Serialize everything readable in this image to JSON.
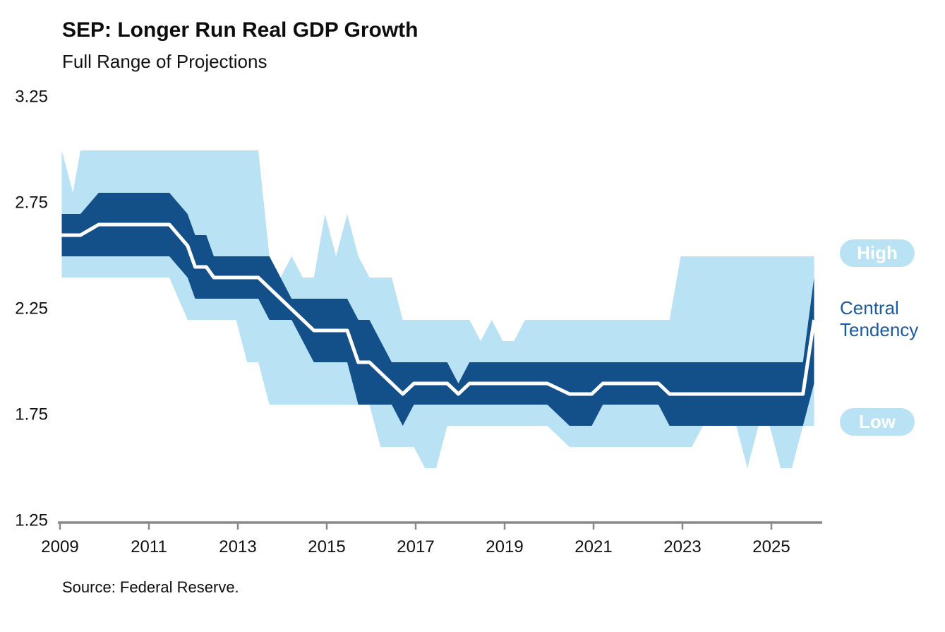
{
  "header": {
    "title": "SEP: Longer Run Real GDP Growth",
    "subtitle": "Full Range of Projections"
  },
  "source_note": "Source: Federal Reserve.",
  "annotations": {
    "high_label": "High",
    "low_label": "Low",
    "central_tendency_label": "Central Tendency"
  },
  "colors": {
    "full_range_blue": "#B9E2F5",
    "central_tendency_blue": "#134F88",
    "median_line_white": "#FFFFFF",
    "annotation_text_blue": "#1A5A9E",
    "axis_gray": "#8A8A8A",
    "text_black": "#0D0D0D"
  },
  "chart_data": {
    "type": "area",
    "title": "SEP: Longer Run Real GDP Growth",
    "subtitle": "Full Range of Projections",
    "xlabel": "",
    "ylabel": "",
    "x_range": [
      2009,
      2026.2
    ],
    "y_range": [
      1.25,
      3.25
    ],
    "grid": false,
    "legend_position": "right",
    "y_ticks": [
      {
        "label": "3.25",
        "value": 3.25
      },
      {
        "label": "2.75",
        "value": 2.75
      },
      {
        "label": "2.25",
        "value": 2.25
      },
      {
        "label": "1.75",
        "value": 1.75
      },
      {
        "label": "1.25",
        "value": 1.25
      }
    ],
    "x_ticks": [
      {
        "label": "2009",
        "value": 2009
      },
      {
        "label": "2011",
        "value": 2011
      },
      {
        "label": "2013",
        "value": 2013
      },
      {
        "label": "2015",
        "value": 2015
      },
      {
        "label": "2017",
        "value": 2017
      },
      {
        "label": "2019",
        "value": 2019
      },
      {
        "label": "2021",
        "value": 2021
      },
      {
        "label": "2023",
        "value": 2023
      },
      {
        "label": "2025",
        "value": 2025
      }
    ],
    "series_legend": [
      {
        "name": "High",
        "series": "range_high",
        "color": "#B9E2F5"
      },
      {
        "name": "Low",
        "series": "range_low",
        "color": "#B9E2F5"
      },
      {
        "name": "Central Tendency",
        "series": "ct_band",
        "color": "#134F88"
      },
      {
        "name": "midline",
        "series": "white_line_mid",
        "color": "#FFFFFF"
      }
    ],
    "columns": [
      "sep_date_decimal_year",
      "range_low",
      "range_high",
      "central_tendency_low",
      "central_tendency_high",
      "white_line_mid"
    ],
    "points": [
      [
        2009.04,
        2.4,
        3.0,
        2.5,
        2.7,
        2.6
      ],
      [
        2009.29,
        2.4,
        2.8,
        2.5,
        2.7,
        2.6
      ],
      [
        2009.46,
        2.4,
        3.0,
        2.5,
        2.7,
        2.6
      ],
      [
        2009.87,
        2.4,
        3.0,
        2.5,
        2.8,
        2.65
      ],
      [
        2010.04,
        2.4,
        3.0,
        2.5,
        2.8,
        2.65
      ],
      [
        2010.29,
        2.4,
        3.0,
        2.5,
        2.8,
        2.65
      ],
      [
        2010.46,
        2.4,
        3.0,
        2.5,
        2.8,
        2.65
      ],
      [
        2010.87,
        2.4,
        3.0,
        2.5,
        2.8,
        2.65
      ],
      [
        2011.04,
        2.4,
        3.0,
        2.5,
        2.8,
        2.65
      ],
      [
        2011.29,
        2.4,
        3.0,
        2.5,
        2.8,
        2.65
      ],
      [
        2011.46,
        2.4,
        3.0,
        2.5,
        2.8,
        2.65
      ],
      [
        2011.87,
        2.2,
        3.0,
        2.4,
        2.7,
        2.55
      ],
      [
        2012.04,
        2.2,
        3.0,
        2.3,
        2.6,
        2.45
      ],
      [
        2012.29,
        2.2,
        3.0,
        2.3,
        2.6,
        2.45
      ],
      [
        2012.46,
        2.2,
        3.0,
        2.3,
        2.5,
        2.4
      ],
      [
        2012.71,
        2.2,
        3.0,
        2.3,
        2.5,
        2.4
      ],
      [
        2012.96,
        2.2,
        3.0,
        2.3,
        2.5,
        2.4
      ],
      [
        2013.21,
        2.0,
        3.0,
        2.3,
        2.5,
        2.4
      ],
      [
        2013.46,
        2.0,
        3.0,
        2.3,
        2.5,
        2.4
      ],
      [
        2013.71,
        1.8,
        2.5,
        2.2,
        2.5,
        2.35
      ],
      [
        2013.96,
        1.8,
        2.4,
        2.2,
        2.4,
        2.3
      ],
      [
        2014.21,
        1.8,
        2.5,
        2.2,
        2.3,
        2.25
      ],
      [
        2014.46,
        1.8,
        2.4,
        2.1,
        2.3,
        2.2
      ],
      [
        2014.71,
        1.8,
        2.4,
        2.0,
        2.3,
        2.15
      ],
      [
        2014.96,
        1.8,
        2.7,
        2.0,
        2.3,
        2.15
      ],
      [
        2015.21,
        1.8,
        2.5,
        2.0,
        2.3,
        2.15
      ],
      [
        2015.46,
        1.8,
        2.7,
        2.0,
        2.3,
        2.15
      ],
      [
        2015.71,
        1.8,
        2.5,
        1.8,
        2.2,
        2.0
      ],
      [
        2015.96,
        1.8,
        2.4,
        1.8,
        2.2,
        2.0
      ],
      [
        2016.21,
        1.6,
        2.4,
        1.8,
        2.1,
        1.95
      ],
      [
        2016.46,
        1.6,
        2.4,
        1.8,
        2.0,
        1.9
      ],
      [
        2016.71,
        1.6,
        2.2,
        1.7,
        2.0,
        1.85
      ],
      [
        2016.96,
        1.6,
        2.2,
        1.8,
        2.0,
        1.9
      ],
      [
        2017.21,
        1.5,
        2.2,
        1.8,
        2.0,
        1.9
      ],
      [
        2017.46,
        1.5,
        2.2,
        1.8,
        2.0,
        1.9
      ],
      [
        2017.71,
        1.7,
        2.2,
        1.8,
        2.0,
        1.9
      ],
      [
        2017.96,
        1.7,
        2.2,
        1.8,
        1.9,
        1.85
      ],
      [
        2018.21,
        1.7,
        2.2,
        1.8,
        2.0,
        1.9
      ],
      [
        2018.46,
        1.7,
        2.1,
        1.8,
        2.0,
        1.9
      ],
      [
        2018.71,
        1.7,
        2.2,
        1.8,
        2.0,
        1.9
      ],
      [
        2018.96,
        1.7,
        2.1,
        1.8,
        2.0,
        1.9
      ],
      [
        2019.21,
        1.7,
        2.1,
        1.8,
        2.0,
        1.9
      ],
      [
        2019.46,
        1.7,
        2.2,
        1.8,
        2.0,
        1.9
      ],
      [
        2019.71,
        1.7,
        2.2,
        1.8,
        2.0,
        1.9
      ],
      [
        2019.96,
        1.7,
        2.2,
        1.8,
        2.0,
        1.9
      ],
      [
        2020.46,
        1.6,
        2.2,
        1.7,
        2.0,
        1.85
      ],
      [
        2020.71,
        1.6,
        2.2,
        1.7,
        2.0,
        1.85
      ],
      [
        2020.96,
        1.6,
        2.2,
        1.7,
        2.0,
        1.85
      ],
      [
        2021.21,
        1.6,
        2.2,
        1.8,
        2.0,
        1.9
      ],
      [
        2021.46,
        1.6,
        2.2,
        1.8,
        2.0,
        1.9
      ],
      [
        2021.71,
        1.6,
        2.2,
        1.8,
        2.0,
        1.9
      ],
      [
        2021.96,
        1.6,
        2.2,
        1.8,
        2.0,
        1.9
      ],
      [
        2022.21,
        1.6,
        2.2,
        1.8,
        2.0,
        1.9
      ],
      [
        2022.46,
        1.6,
        2.2,
        1.8,
        2.0,
        1.9
      ],
      [
        2022.71,
        1.6,
        2.2,
        1.7,
        2.0,
        1.85
      ],
      [
        2022.96,
        1.6,
        2.5,
        1.7,
        2.0,
        1.85
      ],
      [
        2023.21,
        1.6,
        2.5,
        1.7,
        2.0,
        1.85
      ],
      [
        2023.46,
        1.7,
        2.5,
        1.7,
        2.0,
        1.85
      ],
      [
        2023.71,
        1.7,
        2.5,
        1.7,
        2.0,
        1.85
      ],
      [
        2023.96,
        1.7,
        2.5,
        1.7,
        2.0,
        1.85
      ],
      [
        2024.21,
        1.7,
        2.5,
        1.7,
        2.0,
        1.85
      ],
      [
        2024.46,
        1.5,
        2.5,
        1.7,
        2.0,
        1.85
      ],
      [
        2024.71,
        1.7,
        2.5,
        1.7,
        2.0,
        1.85
      ],
      [
        2024.96,
        1.7,
        2.5,
        1.7,
        2.0,
        1.85
      ],
      [
        2025.21,
        1.5,
        2.5,
        1.7,
        2.0,
        1.85
      ],
      [
        2025.46,
        1.5,
        2.5,
        1.7,
        2.0,
        1.85
      ],
      [
        2025.71,
        1.7,
        2.5,
        1.7,
        2.0,
        1.85
      ],
      [
        2025.96,
        1.7,
        2.5,
        1.9,
        2.4,
        2.2
      ]
    ]
  }
}
